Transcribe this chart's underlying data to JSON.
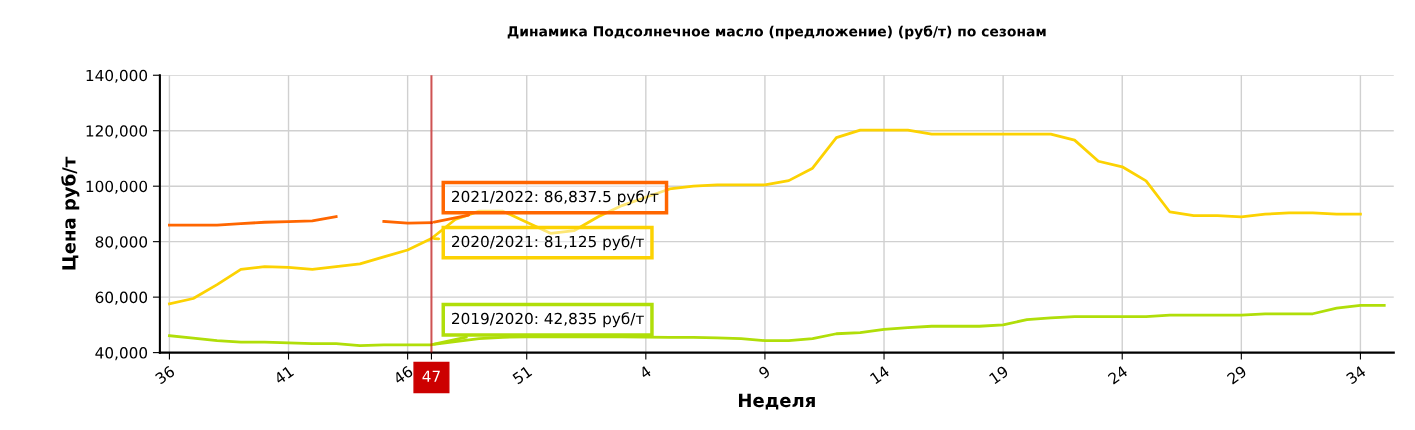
{
  "chart_data": {
    "type": "line",
    "title": "Динамика Подсолнечное масло (предложение) (руб/т) по сезонам",
    "xlabel": "Неделя",
    "ylabel": "Цена руб/т",
    "categories": [
      "36",
      null,
      null,
      null,
      null,
      "41",
      null,
      null,
      null,
      null,
      "46",
      "47",
      null,
      null,
      null,
      "51",
      null,
      null,
      null,
      null,
      "4",
      null,
      null,
      null,
      null,
      "9",
      null,
      null,
      null,
      null,
      "14",
      null,
      null,
      null,
      null,
      "19",
      null,
      null,
      null,
      null,
      "24",
      null,
      null,
      null,
      null,
      "29",
      null,
      null,
      null,
      null,
      "34",
      null
    ],
    "series": [
      {
        "color": "#ff6600",
        "values": [
          86000,
          86000,
          86000,
          86500,
          87000,
          87200,
          87500,
          89000,
          null,
          87300,
          86700,
          86837.5,
          null,
          null,
          null,
          null,
          null,
          null,
          null,
          null,
          null,
          null,
          null,
          null,
          null,
          null,
          null,
          null,
          null,
          null,
          null,
          null,
          null,
          null,
          null,
          null,
          null,
          null,
          null,
          null,
          null,
          null,
          null,
          null,
          null,
          null,
          null,
          null,
          null,
          null,
          null,
          null
        ]
      },
      {
        "color": "#fcd202",
        "values": [
          57600,
          59500,
          64500,
          70000,
          71000,
          70700,
          70000,
          71000,
          72000,
          74500,
          77000,
          81125,
          88000,
          91000,
          91000,
          87000,
          83000,
          84000,
          89000,
          93000,
          96000,
          99000,
          100000,
          100500,
          100500,
          100500,
          102000,
          106500,
          117500,
          120200,
          120200,
          120200,
          118800,
          118800,
          118800,
          118800,
          118800,
          118800,
          116600,
          109000,
          107000,
          101900,
          90700,
          89400,
          89400,
          88900,
          89900,
          90400,
          90400,
          89900,
          89900,
          null
        ]
      },
      {
        "color": "#b0de09",
        "values": [
          46100,
          45200,
          44300,
          43800,
          43800,
          43500,
          43200,
          43200,
          42500,
          42800,
          42800,
          42835,
          44000,
          45000,
          45500,
          45700,
          45700,
          45700,
          45700,
          45700,
          45600,
          45500,
          45500,
          45300,
          45000,
          44300,
          44300,
          45000,
          46800,
          47200,
          48400,
          49000,
          49500,
          49500,
          49500,
          50000,
          51900,
          52500,
          53000,
          53000,
          53000,
          53000,
          53500,
          53500,
          53500,
          53500,
          54000,
          54000,
          54000,
          56000,
          57000,
          57000
        ]
      }
    ],
    "ylim": [
      40000,
      140000
    ],
    "yticks": [
      {
        "value": 40000,
        "label": "40,000"
      },
      {
        "value": 60000,
        "label": "60,000"
      },
      {
        "value": 80000,
        "label": "80,000"
      },
      {
        "value": 100000,
        "label": "100,000"
      },
      {
        "value": 120000,
        "label": "120,000"
      },
      {
        "value": 140000,
        "label": "140,000"
      }
    ],
    "grid": true,
    "marker": "none",
    "line_style": "solid",
    "ref_lines": [
      {
        "axis": "x",
        "value": "47",
        "label": "47",
        "color": "#cc0000"
      }
    ],
    "annotations": [
      {
        "text": "2021/2022: 86,837.5 руб/т",
        "x": "47",
        "y": 86837.5
      },
      {
        "text": "2020/2021: 81,125 руб/т",
        "x": "47",
        "y": 81125
      },
      {
        "text": "2019/2020: 42,835 руб/т",
        "x": "47",
        "y": 42835
      }
    ]
  }
}
